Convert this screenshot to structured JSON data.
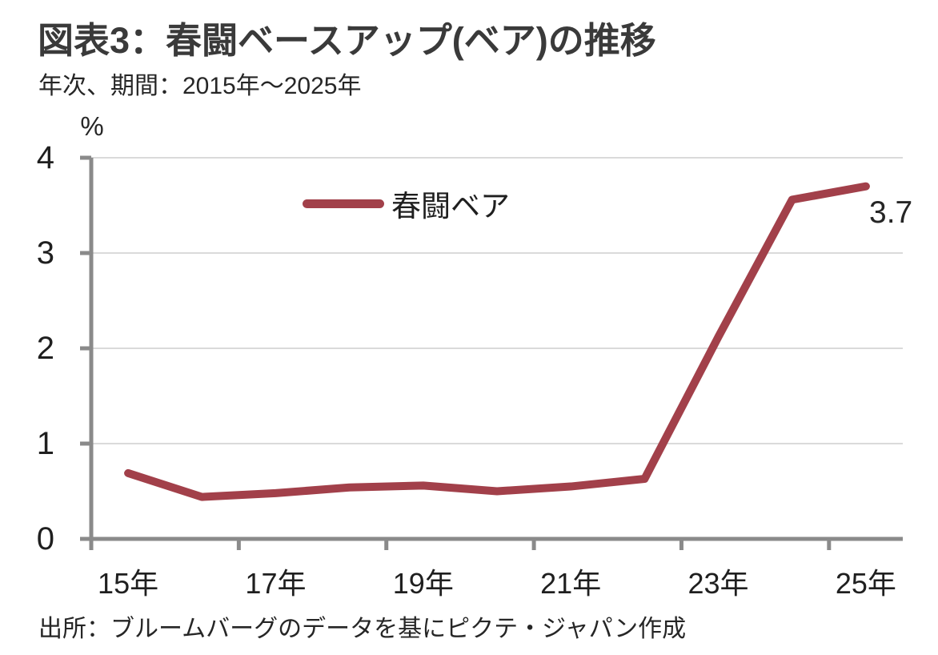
{
  "header": {
    "title": "図表3：春闘ベースアップ(ベア)の推移",
    "subtitle": "年次、期間：2015年～2025年"
  },
  "chart_data": {
    "type": "line",
    "title": "図表3：春闘ベースアップ(ベア)の推移",
    "subtitle": "年次、期間：2015年～2025年",
    "unit_label": "%",
    "x": [
      2015,
      2016,
      2017,
      2018,
      2019,
      2020,
      2021,
      2022,
      2023,
      2024,
      2025
    ],
    "x_tick_labels": [
      "15年",
      "17年",
      "19年",
      "21年",
      "23年",
      "25年"
    ],
    "x_tick_years": [
      2015,
      2017,
      2019,
      2021,
      2023,
      2025
    ],
    "series": [
      {
        "name": "春闘ベア",
        "values": [
          0.69,
          0.44,
          0.48,
          0.54,
          0.56,
          0.5,
          0.55,
          0.63,
          2.12,
          3.56,
          3.7
        ],
        "color": "#A2404A"
      }
    ],
    "ylim": [
      0,
      4
    ],
    "yticks": [
      0,
      1,
      2,
      3,
      4
    ],
    "end_label": "3.7",
    "grid": "horizontal",
    "legend_position": "inside-top-left",
    "colors": {
      "axis": "#8A8A8A",
      "gridline": "#DADADA",
      "text": "#262626"
    }
  },
  "footer": {
    "source": "出所：ブルームバーグのデータを基にピクテ・ジャパン作成"
  }
}
